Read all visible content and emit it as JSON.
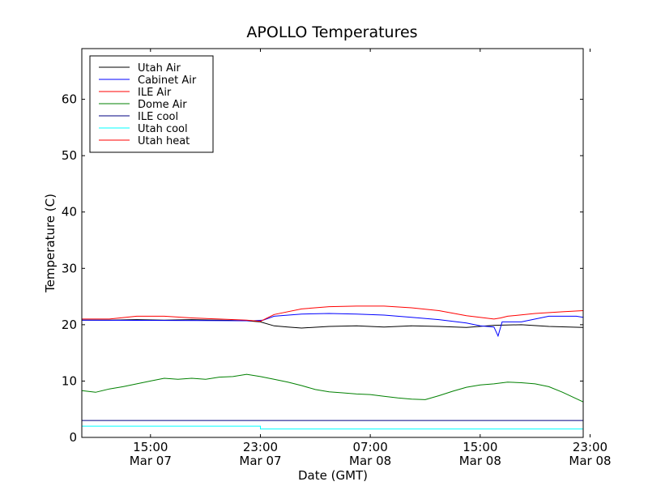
{
  "chart_data": {
    "type": "line",
    "title": "APOLLO Temperatures",
    "xlabel": "Date (GMT)",
    "ylabel": "Temperature (C)",
    "x_unit": "hours since Mar 07 10:00 GMT",
    "xlim": [
      0,
      36.5
    ],
    "ylim": [
      0,
      69
    ],
    "yticks": [
      0,
      10,
      20,
      30,
      40,
      50,
      60
    ],
    "xticks": [
      {
        "x": 5,
        "line1": "15:00",
        "line2": "Mar 07"
      },
      {
        "x": 13,
        "line1": "23:00",
        "line2": "Mar 07"
      },
      {
        "x": 21,
        "line1": "07:00",
        "line2": "Mar 08"
      },
      {
        "x": 29,
        "line1": "15:00",
        "line2": "Mar 08"
      },
      {
        "x": 37,
        "line1": "23:00",
        "line2": "Mar 08"
      }
    ],
    "legend_position": "top-left",
    "series": [
      {
        "name": "Utah Air",
        "color": "#000000",
        "points": [
          [
            0,
            20.8
          ],
          [
            2,
            20.8
          ],
          [
            4,
            20.9
          ],
          [
            6,
            20.8
          ],
          [
            8,
            20.9
          ],
          [
            10,
            20.8
          ],
          [
            12,
            20.7
          ],
          [
            13,
            20.5
          ],
          [
            14,
            19.8
          ],
          [
            15,
            19.6
          ],
          [
            16,
            19.4
          ],
          [
            18,
            19.7
          ],
          [
            20,
            19.8
          ],
          [
            22,
            19.6
          ],
          [
            24,
            19.8
          ],
          [
            26,
            19.7
          ],
          [
            28,
            19.5
          ],
          [
            30,
            19.9
          ],
          [
            32,
            20.0
          ],
          [
            34,
            19.7
          ],
          [
            36.5,
            19.5
          ]
        ]
      },
      {
        "name": "Cabinet Air",
        "color": "#0000ff",
        "points": [
          [
            0,
            20.8
          ],
          [
            12.5,
            20.7
          ],
          [
            13.2,
            20.8
          ],
          [
            14,
            21.5
          ],
          [
            16,
            21.9
          ],
          [
            18,
            22.0
          ],
          [
            20,
            21.9
          ],
          [
            22,
            21.7
          ],
          [
            24,
            21.3
          ],
          [
            26,
            20.9
          ],
          [
            28,
            20.3
          ],
          [
            29,
            19.8
          ],
          [
            30,
            19.6
          ],
          [
            30.3,
            18.0
          ],
          [
            30.6,
            20.5
          ],
          [
            32,
            20.5
          ],
          [
            33,
            21.0
          ],
          [
            34,
            21.5
          ],
          [
            36,
            21.5
          ],
          [
            36.5,
            21.3
          ]
        ]
      },
      {
        "name": "ILE Air",
        "color": "#ff0000",
        "points": [
          [
            0,
            21.0
          ],
          [
            2,
            21.0
          ],
          [
            4,
            21.5
          ],
          [
            6,
            21.5
          ],
          [
            8,
            21.2
          ],
          [
            10,
            21.0
          ],
          [
            12,
            20.8
          ],
          [
            13,
            20.6
          ],
          [
            14,
            21.8
          ],
          [
            16,
            22.8
          ],
          [
            18,
            23.2
          ],
          [
            20,
            23.3
          ],
          [
            22,
            23.3
          ],
          [
            24,
            23.0
          ],
          [
            26,
            22.5
          ],
          [
            28,
            21.6
          ],
          [
            30,
            21.0
          ],
          [
            30.5,
            21.2
          ],
          [
            31,
            21.5
          ],
          [
            33,
            22.0
          ],
          [
            35,
            22.3
          ],
          [
            36.5,
            22.5
          ]
        ]
      },
      {
        "name": "Dome Air",
        "color": "#008000",
        "points": [
          [
            0,
            8.3
          ],
          [
            1,
            8.0
          ],
          [
            2,
            8.6
          ],
          [
            3,
            9.0
          ],
          [
            4,
            9.5
          ],
          [
            5,
            10.0
          ],
          [
            6,
            10.5
          ],
          [
            7,
            10.3
          ],
          [
            8,
            10.5
          ],
          [
            9,
            10.3
          ],
          [
            10,
            10.7
          ],
          [
            11,
            10.8
          ],
          [
            12,
            11.2
          ],
          [
            13,
            10.8
          ],
          [
            14,
            10.3
          ],
          [
            15,
            9.8
          ],
          [
            16,
            9.2
          ],
          [
            17,
            8.5
          ],
          [
            18,
            8.1
          ],
          [
            19,
            7.9
          ],
          [
            20,
            7.7
          ],
          [
            21,
            7.6
          ],
          [
            22,
            7.3
          ],
          [
            23,
            7.0
          ],
          [
            24,
            6.8
          ],
          [
            25,
            6.7
          ],
          [
            26,
            7.4
          ],
          [
            27,
            8.2
          ],
          [
            28,
            8.9
          ],
          [
            29,
            9.3
          ],
          [
            30,
            9.5
          ],
          [
            31,
            9.8
          ],
          [
            32,
            9.7
          ],
          [
            33,
            9.5
          ],
          [
            34,
            9.0
          ],
          [
            35,
            8.0
          ],
          [
            36.5,
            6.3
          ]
        ]
      },
      {
        "name": "ILE cool",
        "color": "#000080",
        "points": [
          [
            0,
            3.0
          ],
          [
            13,
            3.0
          ],
          [
            36.5,
            3.0
          ]
        ]
      },
      {
        "name": "Utah cool",
        "color": "#00ffff",
        "points": [
          [
            0,
            2.0
          ],
          [
            13,
            2.0
          ],
          [
            13,
            1.5
          ],
          [
            36.5,
            1.5
          ]
        ]
      },
      {
        "name": "Utah heat",
        "color": "#ff0000",
        "points": [
          [
            0,
            0
          ],
          [
            13,
            0
          ],
          [
            36.5,
            0
          ]
        ]
      }
    ]
  }
}
